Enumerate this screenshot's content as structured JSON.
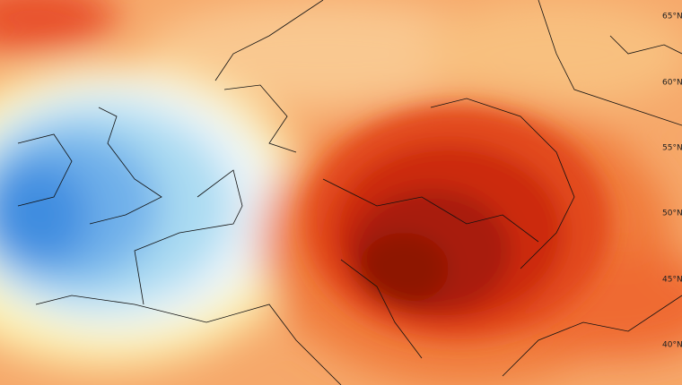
{
  "latitude_labels": [
    "65°N",
    "60°N",
    "55°N",
    "50°N",
    "45°N",
    "40°N"
  ]
}
